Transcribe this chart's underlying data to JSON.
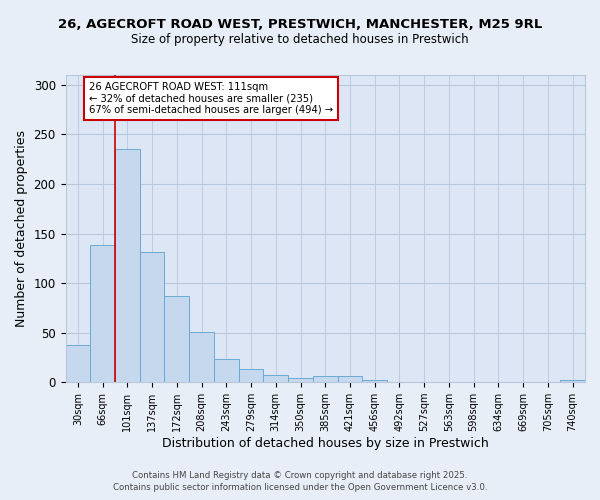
{
  "title_line1": "26, AGECROFT ROAD WEST, PRESTWICH, MANCHESTER, M25 9RL",
  "title_line2": "Size of property relative to detached houses in Prestwich",
  "xlabel": "Distribution of detached houses by size in Prestwich",
  "ylabel": "Number of detached properties",
  "bar_labels": [
    "30sqm",
    "66sqm",
    "101sqm",
    "137sqm",
    "172sqm",
    "208sqm",
    "243sqm",
    "279sqm",
    "314sqm",
    "350sqm",
    "385sqm",
    "421sqm",
    "456sqm",
    "492sqm",
    "527sqm",
    "563sqm",
    "598sqm",
    "634sqm",
    "669sqm",
    "705sqm",
    "740sqm"
  ],
  "bar_values": [
    38,
    138,
    235,
    131,
    87,
    51,
    23,
    13,
    7,
    4,
    6,
    6,
    2,
    0,
    0,
    0,
    0,
    0,
    0,
    0,
    2
  ],
  "bar_color": "#c5d8ee",
  "bar_edge_color": "#6aaad4",
  "vline_color": "#cc0000",
  "vline_x_index": 2,
  "ylim": [
    0,
    310
  ],
  "yticks": [
    0,
    50,
    100,
    150,
    200,
    250,
    300
  ],
  "annotation_text": "26 AGECROFT ROAD WEST: 111sqm\n← 32% of detached houses are smaller (235)\n67% of semi-detached houses are larger (494) →",
  "footer_line1": "Contains HM Land Registry data © Crown copyright and database right 2025.",
  "footer_line2": "Contains public sector information licensed under the Open Government Licence v3.0.",
  "bg_color": "#e8eef7",
  "plot_bg_color": "#dce6f5",
  "grid_color": "#b8c8dc"
}
